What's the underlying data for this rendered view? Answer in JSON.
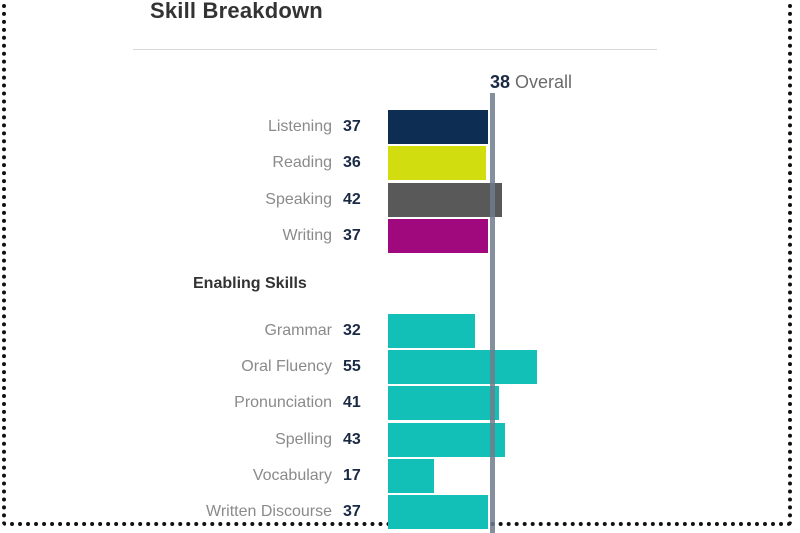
{
  "panel": {
    "title": "Skill Breakdown",
    "section_label": "Enabling Skills"
  },
  "chart_data": {
    "type": "bar",
    "orientation": "horizontal",
    "overall": {
      "value": 38,
      "label": "Overall"
    },
    "scale_max": 90,
    "communicative_skills": [
      {
        "label": "Listening",
        "value": 37,
        "color": "#0d2d52"
      },
      {
        "label": "Reading",
        "value": 36,
        "color": "#d2dd10"
      },
      {
        "label": "Speaking",
        "value": 42,
        "color": "#595959"
      },
      {
        "label": "Writing",
        "value": 37,
        "color": "#a0097e"
      }
    ],
    "enabling_skills": [
      {
        "label": "Grammar",
        "value": 32,
        "color": "#12c0b7"
      },
      {
        "label": "Oral Fluency",
        "value": 55,
        "color": "#12c0b7"
      },
      {
        "label": "Pronunciation",
        "value": 41,
        "color": "#12c0b7"
      },
      {
        "label": "Spelling",
        "value": 43,
        "color": "#12c0b7"
      },
      {
        "label": "Vocabulary",
        "value": 17,
        "color": "#12c0b7"
      },
      {
        "label": "Written Discourse",
        "value": 37,
        "color": "#12c0b7"
      }
    ]
  }
}
